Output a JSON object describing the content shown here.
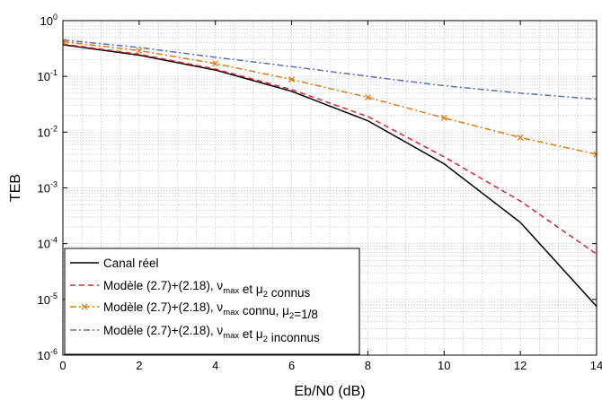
{
  "chart_data": {
    "type": "line",
    "xlabel": "Eb/N0 (dB)",
    "ylabel": "TEB",
    "xlim": [
      0,
      14
    ],
    "ylim": [
      1e-06,
      1
    ],
    "yscale": "log",
    "grid": true,
    "legend_position": "bottom-left",
    "x_ticks": [
      0,
      2,
      4,
      6,
      8,
      10,
      12,
      14
    ],
    "y_ticks": [
      {
        "value": 1e-06,
        "base": "10",
        "exp": "-6"
      },
      {
        "value": 1e-05,
        "base": "10",
        "exp": "-5"
      },
      {
        "value": 0.0001,
        "base": "10",
        "exp": "-4"
      },
      {
        "value": 0.001,
        "base": "10",
        "exp": "-3"
      },
      {
        "value": 0.01,
        "base": "10",
        "exp": "-2"
      },
      {
        "value": 0.1,
        "base": "10",
        "exp": "-1"
      },
      {
        "value": 1,
        "base": "10",
        "exp": "0"
      }
    ],
    "series": [
      {
        "name": "Canal réel",
        "legend_parts": [
          {
            "t": "Canal réel"
          }
        ],
        "color": "#000000",
        "dash": "",
        "marker": "none",
        "x": [
          0,
          2,
          4,
          6,
          8,
          10,
          12,
          14
        ],
        "y": [
          0.37,
          0.24,
          0.13,
          0.054,
          0.016,
          0.0027,
          0.00024,
          7.5e-06
        ]
      },
      {
        "name": "Modèle (2.7)+(2.18), νmax et μ2 connus",
        "legend_parts": [
          {
            "t": "Modèle (2.7)+(2.18), ν"
          },
          {
            "t": "max",
            "sub": true
          },
          {
            "t": " et  μ"
          },
          {
            "t": "2",
            "sub": true
          },
          {
            "t": " connus"
          }
        ],
        "color": "#e8202a",
        "dash": "6,4",
        "marker": "none",
        "x": [
          0,
          2,
          4,
          6,
          8,
          10,
          12,
          14
        ],
        "y": [
          0.38,
          0.25,
          0.135,
          0.058,
          0.019,
          0.0036,
          0.00058,
          6.5e-05
        ]
      },
      {
        "name": "Modèle (2.7)+(2.18), νmax connu, μ2=1/8",
        "legend_parts": [
          {
            "t": "Modèle (2.7)+(2.18), ν"
          },
          {
            "t": "max",
            "sub": true
          },
          {
            "t": " connu, μ"
          },
          {
            "t": "2",
            "sub": true
          },
          {
            "t": "=1/8"
          }
        ],
        "color": "#e07b10",
        "dash": "7,3,2,3",
        "marker": "x",
        "x": [
          0,
          2,
          4,
          6,
          8,
          10,
          12,
          14
        ],
        "y": [
          0.42,
          0.29,
          0.17,
          0.088,
          0.042,
          0.018,
          0.008,
          0.004
        ]
      },
      {
        "name": "Modèle (2.7)+(2.18), νmax et μ2 inconnus",
        "legend_parts": [
          {
            "t": "Modèle (2.7)+(2.18), ν"
          },
          {
            "t": "max",
            "sub": true
          },
          {
            "t": " et μ"
          },
          {
            "t": "2",
            "sub": true
          },
          {
            "t": " inconnus"
          }
        ],
        "color": "#5a6fb5",
        "dash": "7,3,2,3",
        "marker": "none",
        "x": [
          0,
          2,
          4,
          6,
          8,
          10,
          12,
          14
        ],
        "y": [
          0.45,
          0.33,
          0.22,
          0.15,
          0.1,
          0.068,
          0.05,
          0.039
        ]
      }
    ]
  }
}
